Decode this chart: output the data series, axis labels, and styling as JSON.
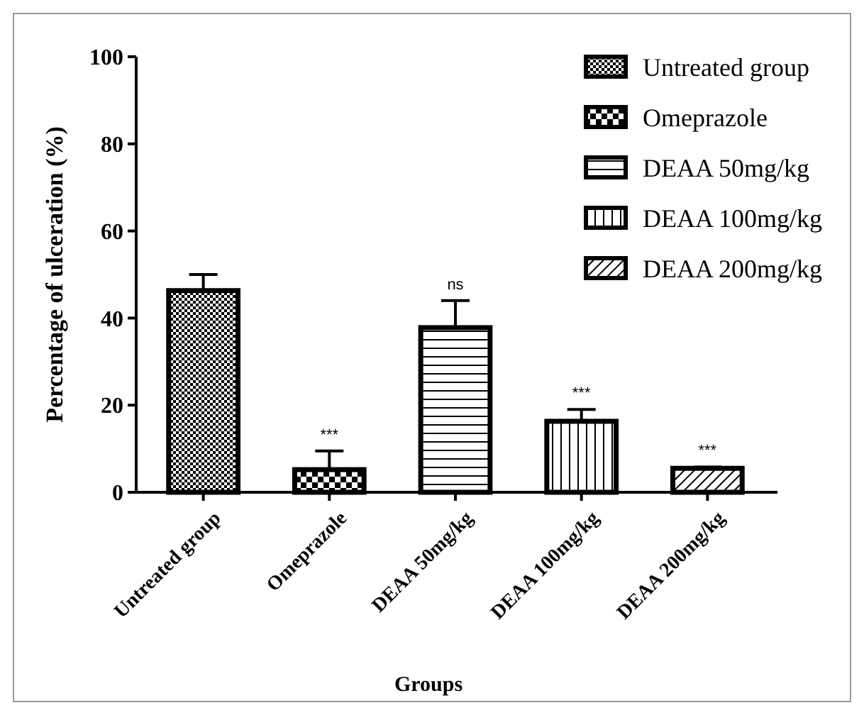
{
  "chart_data": {
    "type": "bar",
    "xlabel": "Groups",
    "ylabel": "Percentage of ulceration (%)",
    "categories": [
      "Untreated group",
      "Omeprazole",
      "DEAA 50mg/kg",
      "DEAA 100mg/kg",
      "DEAA 200mg/kg"
    ],
    "series": [
      {
        "name": "Untreated group",
        "color": "#000000",
        "values": [
          46.3,
          null,
          null,
          null,
          null
        ],
        "errors": [
          3.7,
          null,
          null,
          null,
          null
        ]
      },
      {
        "name": "Omeprazole",
        "color": "#000000",
        "values": [
          null,
          5.2,
          null,
          null,
          null
        ],
        "errors": [
          null,
          4.3,
          null,
          null,
          null
        ]
      },
      {
        "name": "DEAA 50mg/kg",
        "color": "#000000",
        "values": [
          null,
          null,
          37.8,
          null,
          null
        ],
        "errors": [
          null,
          null,
          6.2,
          null,
          null
        ]
      },
      {
        "name": "DEAA 100mg/kg",
        "color": "#000000",
        "values": [
          null,
          null,
          null,
          16.3,
          null
        ],
        "errors": [
          null,
          null,
          null,
          2.7,
          null
        ]
      },
      {
        "name": "DEAA 200mg/kg",
        "color": "#000000",
        "values": [
          null,
          null,
          null,
          null,
          5.5
        ],
        "errors": [
          null,
          null,
          null,
          null,
          0.3
        ]
      }
    ],
    "ylim": [
      0,
      100
    ],
    "yticks": [
      0,
      20,
      40,
      60,
      80,
      100
    ],
    "grid": false,
    "legend": "top right",
    "annotations": [
      {
        "text": "***",
        "x": "Omeprazole",
        "y": 9.5
      },
      {
        "text": "ns",
        "x": "DEAA 50mg/kg",
        "y": 44
      },
      {
        "text": "***",
        "x": "DEAA 100mg/kg",
        "y": 19
      },
      {
        "text": "***",
        "x": "DEAA 200mg/kg",
        "y": 5.8
      }
    ]
  }
}
